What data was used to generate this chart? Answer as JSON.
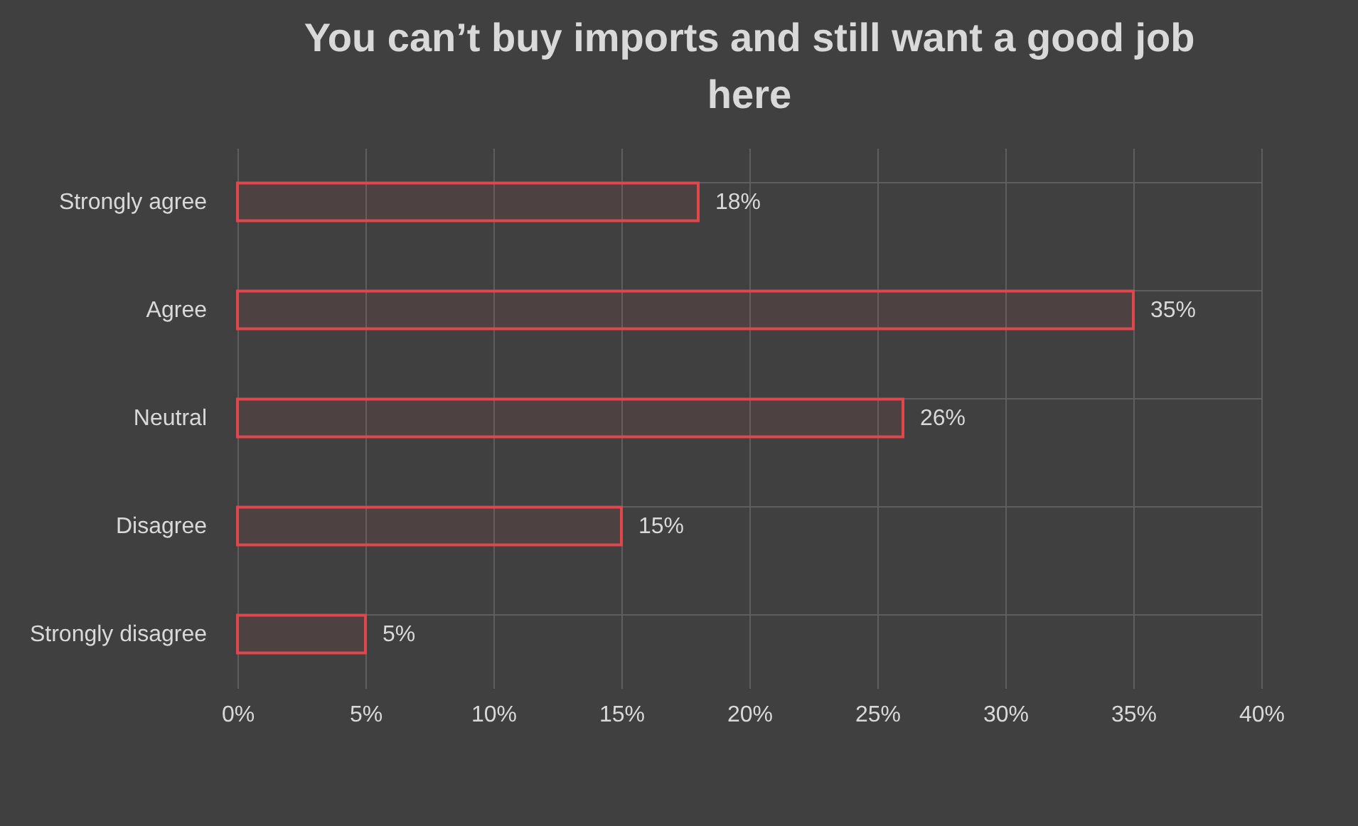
{
  "chart_data": {
    "type": "bar",
    "orientation": "horizontal",
    "title": "You can’t buy imports and still want a good job here",
    "categories": [
      "Strongly agree",
      "Agree",
      "Neutral",
      "Disagree",
      "Strongly disagree"
    ],
    "values": [
      18,
      35,
      26,
      15,
      5
    ],
    "value_labels": [
      "18%",
      "35%",
      "26%",
      "15%",
      "5%"
    ],
    "color": "#e0474c",
    "xlim": [
      0,
      40
    ],
    "xticks": [
      {
        "value": 0,
        "label": "0%"
      },
      {
        "value": 5,
        "label": "5%"
      },
      {
        "value": 10,
        "label": "10%"
      },
      {
        "value": 15,
        "label": "15%"
      },
      {
        "value": 20,
        "label": "20%"
      },
      {
        "value": 25,
        "label": "25%"
      },
      {
        "value": 30,
        "label": "30%"
      },
      {
        "value": 35,
        "label": "35%"
      },
      {
        "value": 40,
        "label": "40%"
      }
    ],
    "grid": true
  }
}
